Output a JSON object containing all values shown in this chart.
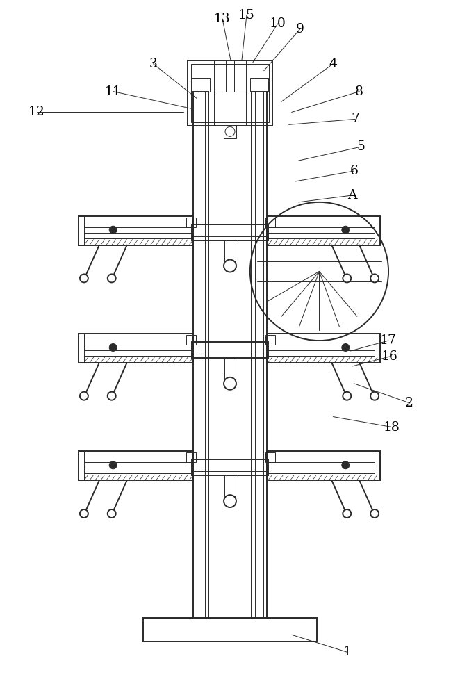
{
  "bg_color": "#ffffff",
  "line_color": "#2a2a2a",
  "lw_main": 1.4,
  "lw_thin": 0.7,
  "lw_med": 1.0,
  "fig_width": 6.62,
  "fig_height": 10.0,
  "label_fontsize": 13.5
}
